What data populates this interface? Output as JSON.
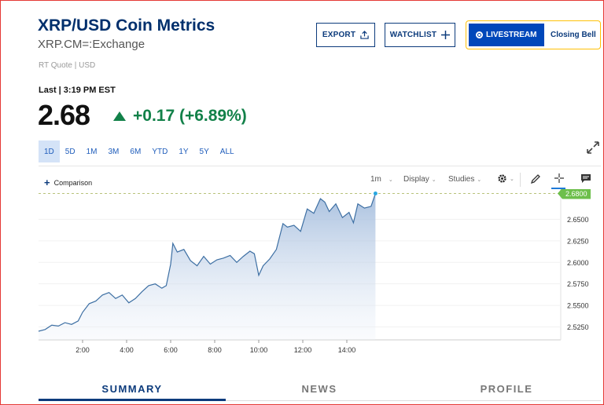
{
  "header": {
    "title": "XRP/USD Coin Metrics",
    "exchange": "XRP.CM=:Exchange",
    "quote_type": "RT Quote | USD"
  },
  "buttons": {
    "export": "EXPORT",
    "watchlist": "WATCHLIST",
    "livestream": "LIVESTREAM",
    "closing_bell": "Closing Bell"
  },
  "quote": {
    "last_label": "Last | 3:19 PM EST",
    "price": "2.68",
    "change": "+0.17 (+6.89%)"
  },
  "ranges": [
    {
      "label": "1D",
      "active": true
    },
    {
      "label": "5D"
    },
    {
      "label": "1M"
    },
    {
      "label": "3M"
    },
    {
      "label": "6M"
    },
    {
      "label": "YTD"
    },
    {
      "label": "1Y"
    },
    {
      "label": "5Y"
    },
    {
      "label": "ALL"
    }
  ],
  "toolbar": {
    "comparison": "Comparison",
    "interval": "1m",
    "display": "Display",
    "studies": "Studies"
  },
  "chart_data": {
    "type": "area",
    "x_tick_labels": [
      "2:00",
      "4:00",
      "6:00",
      "8:00",
      "10:00",
      "12:00",
      "14:00"
    ],
    "y_tick_labels": [
      "2.5250",
      "2.5500",
      "2.5750",
      "2.6000",
      "2.6250",
      "2.6500"
    ],
    "ylim": [
      2.51,
      2.685
    ],
    "current_label": "2.6800",
    "x_hours": [
      0.0,
      0.3,
      0.6,
      0.9,
      1.2,
      1.5,
      1.8,
      2.0,
      2.3,
      2.6,
      2.9,
      3.2,
      3.5,
      3.8,
      4.1,
      4.4,
      4.7,
      5.0,
      5.3,
      5.6,
      5.8,
      6.0,
      6.1,
      6.3,
      6.6,
      6.9,
      7.2,
      7.5,
      7.8,
      8.1,
      8.4,
      8.7,
      9.0,
      9.3,
      9.6,
      9.8,
      10.0,
      10.2,
      10.5,
      10.8,
      11.1,
      11.3,
      11.6,
      11.9,
      12.2,
      12.5,
      12.8,
      13.0,
      13.2,
      13.5,
      13.8,
      14.1,
      14.3,
      14.5,
      14.8,
      15.1,
      15.3
    ],
    "y_values": [
      2.52,
      2.522,
      2.527,
      2.526,
      2.53,
      2.528,
      2.532,
      2.542,
      2.552,
      2.555,
      2.562,
      2.565,
      2.558,
      2.562,
      2.553,
      2.558,
      2.566,
      2.573,
      2.575,
      2.57,
      2.573,
      2.598,
      2.622,
      2.612,
      2.615,
      2.602,
      2.596,
      2.607,
      2.598,
      2.603,
      2.605,
      2.608,
      2.6,
      2.607,
      2.613,
      2.61,
      2.585,
      2.596,
      2.604,
      2.615,
      2.645,
      2.641,
      2.643,
      2.636,
      2.662,
      2.657,
      2.674,
      2.67,
      2.659,
      2.668,
      2.652,
      2.658,
      2.646,
      2.668,
      2.663,
      2.665,
      2.68
    ]
  },
  "tabs": [
    {
      "label": "SUMMARY",
      "active": true
    },
    {
      "label": "NEWS"
    },
    {
      "label": "PROFILE"
    }
  ],
  "colors": {
    "brand": "#002f6c",
    "positive": "#128149",
    "line": "#3d6fa3",
    "accent": "#0047ba",
    "current_badge": "#6dbf4b"
  }
}
